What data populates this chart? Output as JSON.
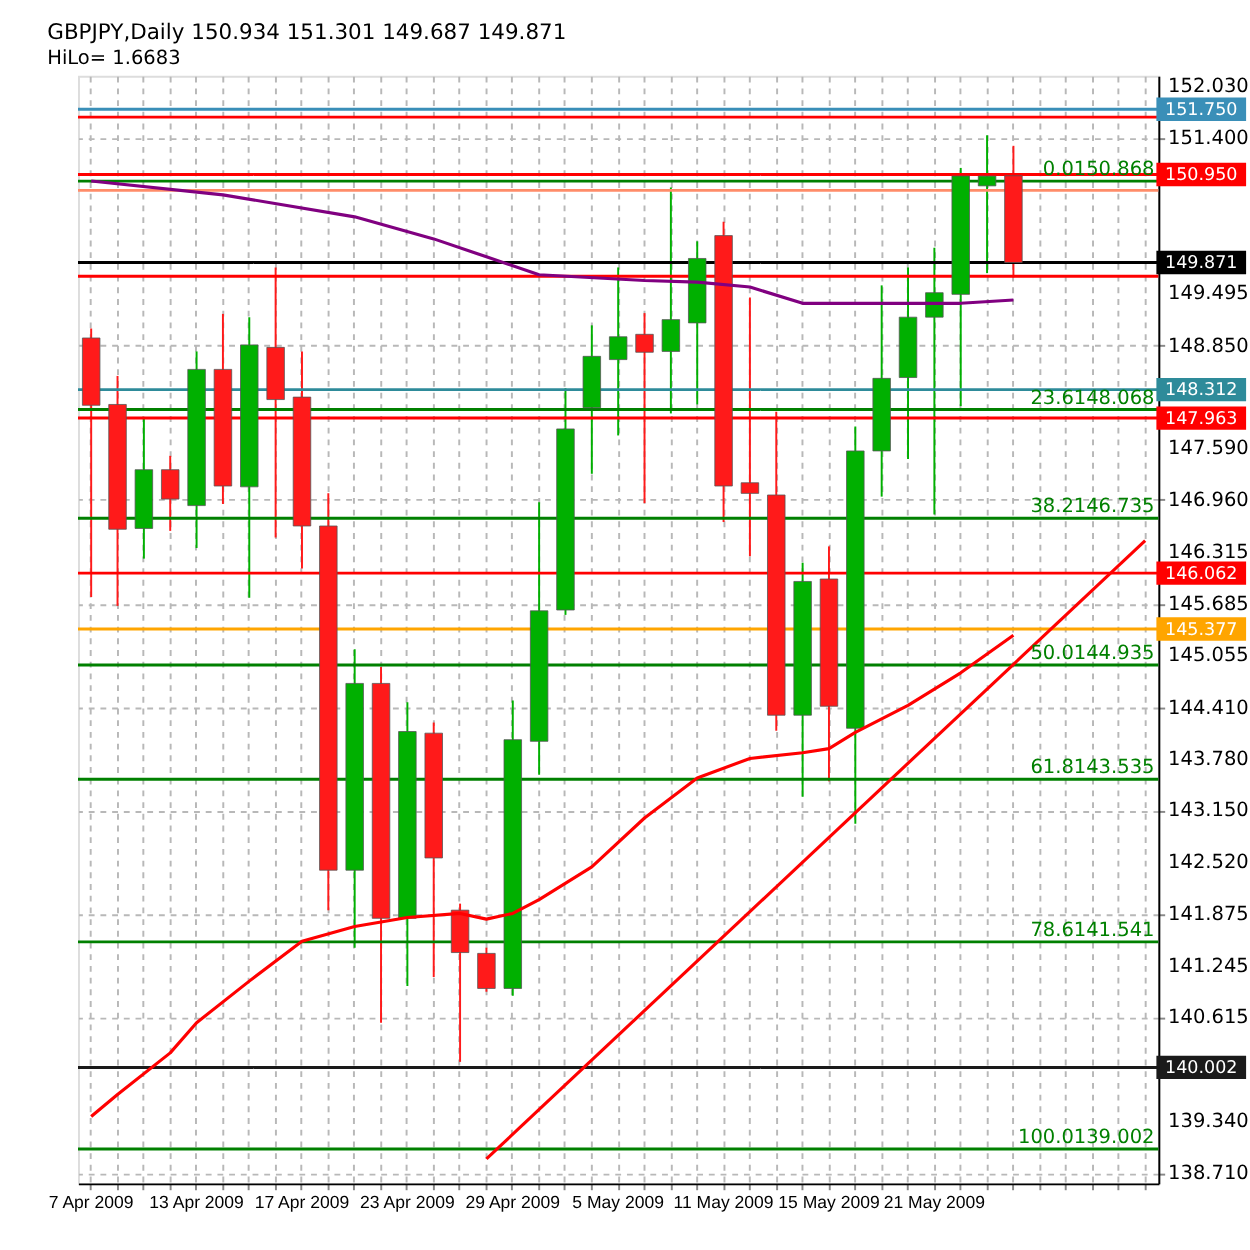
{
  "chart_data": {
    "type": "candlestick",
    "title": "GBPJPY,Daily  150.934 151.301 149.687 149.871",
    "subtitle": "HiLo= 1.6683",
    "categories": [
      "7 Apr 2009",
      null,
      null,
      null,
      "13 Apr 2009",
      null,
      null,
      null,
      "17 Apr 2009",
      null,
      null,
      null,
      "23 Apr 2009",
      null,
      null,
      null,
      "29 Apr 2009",
      null,
      null,
      null,
      "5 May 2009",
      null,
      null,
      null,
      "11 May 2009",
      null,
      null,
      null,
      "15 May 2009",
      null,
      null,
      null,
      "21 May 2009",
      null,
      null,
      null,
      null,
      null,
      null,
      null,
      null
    ],
    "ohlc": [
      [
        148.945,
        149.06,
        145.77,
        148.12
      ],
      [
        148.13,
        148.48,
        145.66,
        146.6
      ],
      [
        146.61,
        147.96,
        146.24,
        147.33
      ],
      [
        147.33,
        147.5,
        146.58,
        146.97
      ],
      [
        146.89,
        148.78,
        146.37,
        148.56
      ],
      [
        148.56,
        149.24,
        146.91,
        147.13
      ],
      [
        147.12,
        149.2,
        145.76,
        148.86
      ],
      [
        148.83,
        149.81,
        146.5,
        148.19
      ],
      [
        148.22,
        148.78,
        146.12,
        146.64
      ],
      [
        146.64,
        147.04,
        141.93,
        142.42
      ],
      [
        142.42,
        145.13,
        141.47,
        144.71
      ],
      [
        144.71,
        144.91,
        140.55,
        141.83
      ],
      [
        141.83,
        144.48,
        141.0,
        144.12
      ],
      [
        144.1,
        144.23,
        141.11,
        142.57
      ],
      [
        141.93,
        142.01,
        140.07,
        141.41
      ],
      [
        141.4,
        141.47,
        140.93,
        140.97
      ],
      [
        140.97,
        144.5,
        140.88,
        144.02
      ],
      [
        144.0,
        146.93,
        143.59,
        145.6
      ],
      [
        145.61,
        148.33,
        145.55,
        147.83
      ],
      [
        148.09,
        149.1,
        147.28,
        148.72
      ],
      [
        148.68,
        149.81,
        147.75,
        148.96
      ],
      [
        148.99,
        149.25,
        146.92,
        148.77
      ],
      [
        148.78,
        150.79,
        148.02,
        149.17
      ],
      [
        149.13,
        150.13,
        148.13,
        149.92
      ],
      [
        150.2,
        150.37,
        146.69,
        147.13
      ],
      [
        147.17,
        149.44,
        146.27,
        147.04
      ],
      [
        147.02,
        148.04,
        144.13,
        144.32
      ],
      [
        144.32,
        146.19,
        143.32,
        145.96
      ],
      [
        145.99,
        146.39,
        143.51,
        144.43
      ],
      [
        144.16,
        147.86,
        142.99,
        147.56
      ],
      [
        147.56,
        149.59,
        147.0,
        148.45
      ],
      [
        148.46,
        149.81,
        147.46,
        149.2
      ],
      [
        149.2,
        150.05,
        146.78,
        149.5
      ],
      [
        149.48,
        151.03,
        148.11,
        150.93
      ],
      [
        150.81,
        151.43,
        149.74,
        150.93
      ],
      [
        150.934,
        151.301,
        149.687,
        149.871
      ],
      null,
      null,
      null,
      null,
      null
    ],
    "colors": [
      "#ff1a1a",
      "#ff1a1a",
      "#00b000",
      "#ff1a1a",
      "#00b000",
      "#ff1a1a",
      "#00b000",
      "#ff1a1a",
      "#ff1a1a",
      "#ff1a1a",
      "#00b000",
      "#ff1a1a",
      "#00b000",
      "#ff1a1a",
      "#ff1a1a",
      "#ff1a1a",
      "#00b000",
      "#00b000",
      "#00b000",
      "#00b000",
      "#00b000",
      "#ff1a1a",
      "#00b000",
      "#00b000",
      "#ff1a1a",
      "#ff1a1a",
      "#ff1a1a",
      "#00b000",
      "#ff1a1a",
      "#00b000",
      "#00b000",
      "#00b000",
      "#00b000",
      "#00b000",
      "#00b000",
      "#ff1a1a",
      null,
      null,
      null,
      null,
      null
    ],
    "series": [
      {
        "type": "line",
        "color": "#800080",
        "values": [
          150.87,
          null,
          null,
          null,
          null,
          150.7,
          null,
          null,
          null,
          null,
          150.43,
          null,
          null,
          150.16,
          null,
          149.94,
          null,
          149.72,
          null,
          null,
          null,
          149.65,
          null,
          149.63,
          null,
          149.57,
          null,
          149.37,
          null,
          null,
          149.37,
          null,
          null,
          149.37,
          null,
          149.41,
          null,
          null,
          null,
          null,
          null
        ]
      },
      {
        "type": "line",
        "color": "#ff0000",
        "values": [
          139.4,
          139.67,
          null,
          140.18,
          140.55,
          null,
          141.06,
          null,
          141.55,
          null,
          141.73,
          null,
          141.84,
          null,
          141.89,
          141.82,
          141.89,
          142.06,
          null,
          142.46,
          null,
          143.06,
          null,
          143.55,
          null,
          143.79,
          null,
          143.86,
          143.91,
          144.11,
          null,
          144.44,
          null,
          144.84,
          null,
          145.3,
          null,
          null,
          null,
          null,
          null
        ]
      },
      {
        "type": "line",
        "color": "#ff0000",
        "values": [
          null,
          null,
          null,
          null,
          null,
          null,
          null,
          null,
          null,
          null,
          null,
          null,
          null,
          null,
          null,
          138.88,
          null,
          null,
          null,
          null,
          null,
          null,
          null,
          null,
          null,
          null,
          null,
          null,
          null,
          null,
          null,
          null,
          null,
          null,
          null,
          null,
          null,
          null,
          null,
          null,
          146.46
        ]
      }
    ],
    "ylim": [
      138.58,
      152.16
    ],
    "yticks": [
      {
        "value": 152.03,
        "label": "152.030"
      },
      {
        "value": 151.4,
        "label": "151.400"
      },
      {
        "value": 149.495,
        "label": "149.495"
      },
      {
        "value": 148.85,
        "label": "148.850"
      },
      {
        "value": 147.59,
        "label": "147.590"
      },
      {
        "value": 146.96,
        "label": "146.960"
      },
      {
        "value": 146.315,
        "label": "146.315"
      },
      {
        "value": 145.685,
        "label": "145.685"
      },
      {
        "value": 145.055,
        "label": "145.055"
      },
      {
        "value": 144.41,
        "label": "144.410"
      },
      {
        "value": 143.78,
        "label": "143.780"
      },
      {
        "value": 143.15,
        "label": "143.150"
      },
      {
        "value": 142.52,
        "label": "142.520"
      },
      {
        "value": 141.875,
        "label": "141.875"
      },
      {
        "value": 141.245,
        "label": "141.245"
      },
      {
        "value": 140.615,
        "label": "140.615"
      },
      {
        "value": 139.34,
        "label": "139.340"
      },
      {
        "value": 138.71,
        "label": "138.710"
      }
    ],
    "grid": true,
    "ref_lines": [
      {
        "axis": "y",
        "value": 151.75,
        "label": "151.750",
        "color": "#3a8fb8"
      },
      {
        "axis": "y",
        "value": 151.653,
        "color": "#ff0000"
      },
      {
        "axis": "y",
        "value": 150.95,
        "label": "150.950",
        "color": "#ff0000"
      },
      {
        "axis": "y",
        "value": 150.755,
        "color": "#ff8c69"
      },
      {
        "axis": "y",
        "value": 149.871,
        "label": "149.871",
        "color": "#000000"
      },
      {
        "axis": "y",
        "value": 149.701,
        "color": "#ff0000"
      },
      {
        "axis": "y",
        "value": 148.312,
        "label": "148.312",
        "color": "#2e8b9a"
      },
      {
        "axis": "y",
        "value": 147.963,
        "label": "147.963",
        "color": "#ff0000"
      },
      {
        "axis": "y",
        "value": 146.062,
        "label": "146.062",
        "color": "#ff0000"
      },
      {
        "axis": "y",
        "value": 145.377,
        "label": "145.377",
        "color": "#ffa500"
      },
      {
        "axis": "y",
        "value": 140.002,
        "label": "140.002",
        "color": "#1a1a1a"
      },
      {
        "axis": "y",
        "value": 150.868,
        "color": "#008000"
      },
      {
        "axis": "y",
        "value": 148.068,
        "color": "#008000"
      },
      {
        "axis": "y",
        "value": 146.735,
        "color": "#008000"
      },
      {
        "axis": "y",
        "value": 144.935,
        "color": "#008000"
      },
      {
        "axis": "y",
        "value": 143.535,
        "color": "#008000"
      },
      {
        "axis": "y",
        "value": 141.541,
        "color": "#008000"
      },
      {
        "axis": "y",
        "value": 139.002,
        "color": "#008000"
      }
    ],
    "annotations": [
      {
        "text": "0.0150.868",
        "y": 150.868
      },
      {
        "text": "23.6148.068",
        "y": 148.068
      },
      {
        "text": "38.2146.735",
        "y": 146.735
      },
      {
        "text": "50.0144.935",
        "y": 144.935
      },
      {
        "text": "61.8143.535",
        "y": 143.535
      },
      {
        "text": "78.6141.541",
        "y": 141.541
      },
      {
        "text": "100.0139.002",
        "y": 139.002
      }
    ]
  }
}
